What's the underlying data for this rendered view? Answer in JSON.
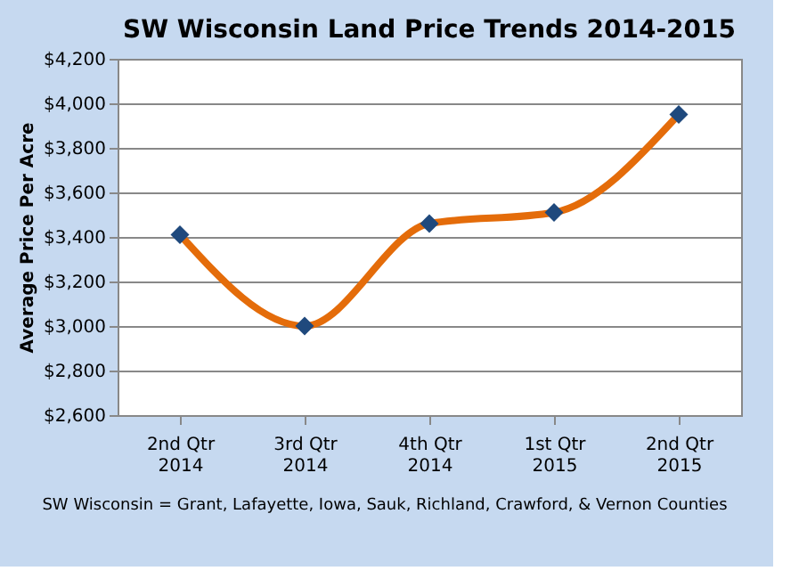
{
  "chart_data": {
    "type": "line",
    "title": "SW Wisconsin Land Price Trends 2014-2015",
    "ylabel": "Average Price  Per Acre",
    "categories": [
      "2nd Qtr\n2014",
      "3rd Qtr\n2014",
      "4th Qtr\n2014",
      "1st Qtr\n2015",
      "2nd Qtr\n2015"
    ],
    "series": [
      {
        "color": "#e46c0a",
        "marker": "none",
        "values": [
          3410,
          3000,
          3460,
          3510,
          3950
        ]
      },
      {
        "type": "scatter",
        "color": "#1f497d",
        "marker": "diamond",
        "values": [
          3410,
          3000,
          3460,
          3510,
          3950
        ]
      }
    ],
    "line_style": "solid",
    "ylim": [
      2600,
      4200
    ],
    "yticks": [
      {
        "value": 2600,
        "label": "$2,600"
      },
      {
        "value": 2800,
        "label": "$2,800"
      },
      {
        "value": 3000,
        "label": "$3,000"
      },
      {
        "value": 3200,
        "label": "$3,200"
      },
      {
        "value": 3400,
        "label": "$3,400"
      },
      {
        "value": 3600,
        "label": "$3,600"
      },
      {
        "value": 3800,
        "label": "$3,800"
      },
      {
        "value": 4000,
        "label": "$4,000"
      },
      {
        "value": 4200,
        "label": "$4,200"
      }
    ],
    "grid": "y",
    "annotations": [
      "SW Wisconsin = Grant, Lafayette, Iowa, Sauk, Richland, Crawford, & Vernon Counties"
    ]
  }
}
